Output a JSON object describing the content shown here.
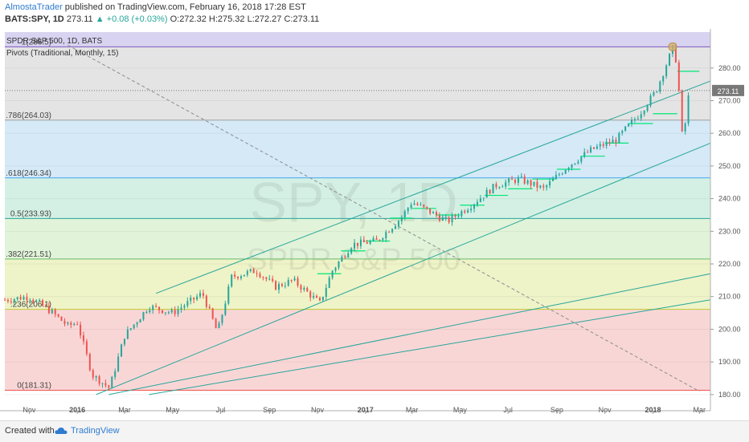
{
  "header": {
    "author": "AlmostaTrader",
    "published": "published on TradingView.com, February 16, 2018 17:28 EST"
  },
  "symbol_line": {
    "symbol": "BATS:SPY, 1D",
    "last": "273.11",
    "change": "+0.08 (+0.03%)",
    "ohlc": "O:272.32 H:275.32 L:272.27 C:273.11"
  },
  "legend": {
    "title": "SPDR S&P 500, 1D, BATS",
    "indicator": "Pivots (Traditional, Monthly, 15)"
  },
  "watermark": {
    "symbol": "SPY, 1D",
    "name": "SPDR S&P 500"
  },
  "footer": {
    "created_with": "Created with",
    "brand": "TradingView"
  },
  "colors": {
    "bull": "#26a69a",
    "bear": "#ef5350",
    "channel": "#26a69a",
    "pivot": "#00e676",
    "price_label": "#787878"
  },
  "chart_data": {
    "type": "candlestick",
    "ylim": [
      178,
      291
    ],
    "x_ticks": [
      "Nov",
      "2016",
      "Mar",
      "May",
      "Jul",
      "Sep",
      "Nov",
      "2017",
      "Mar",
      "May",
      "Jul",
      "Sep",
      "Nov",
      "2018",
      "Mar"
    ],
    "y_ticks": [
      180,
      190,
      200,
      210,
      220,
      230,
      240,
      250,
      260,
      270,
      280
    ],
    "last_price": "273.11",
    "fib_levels": [
      {
        "label": "0(181.31)",
        "value": 181.31,
        "color": "#ef5350",
        "fill": "#f9d6d6"
      },
      {
        "label": ".236(206.1)",
        "value": 206.1,
        "color": "#c0ca33",
        "fill": "#eef3c8"
      },
      {
        "label": ".382(221.51)",
        "value": 221.51,
        "color": "#66bb6a",
        "fill": "#e1f3d9"
      },
      {
        "label": "0.5(233.93)",
        "value": 233.93,
        "color": "#26a69a",
        "fill": "#d4f0e4"
      },
      {
        "label": ".618(246.34)",
        "value": 246.34,
        "color": "#42a5f5",
        "fill": "#d5e9f7"
      },
      {
        "label": ".786(264.03)",
        "value": 264.03,
        "color": "#9e9e9e",
        "fill": "#e4e4e4"
      },
      {
        "label": "1(286.5)",
        "value": 286.5,
        "color": "#7e57c2",
        "fill": "#d7d3f0"
      }
    ],
    "series": [
      {
        "name": "SPY",
        "values": [
          {
            "d": "2015-10-01",
            "c": 209
          },
          {
            "d": "2015-11-01",
            "c": 210
          },
          {
            "d": "2015-12-01",
            "c": 205
          },
          {
            "d": "2015-12-20",
            "c": 201
          },
          {
            "d": "2016-01-01",
            "c": 202
          },
          {
            "d": "2016-01-20",
            "c": 186
          },
          {
            "d": "2016-02-11",
            "c": 182
          },
          {
            "d": "2016-03-01",
            "c": 198
          },
          {
            "d": "2016-04-01",
            "c": 207
          },
          {
            "d": "2016-05-01",
            "c": 205
          },
          {
            "d": "2016-06-08",
            "c": 211
          },
          {
            "d": "2016-06-27",
            "c": 199
          },
          {
            "d": "2016-07-15",
            "c": 216
          },
          {
            "d": "2016-08-15",
            "c": 218
          },
          {
            "d": "2016-09-09",
            "c": 213
          },
          {
            "d": "2016-10-01",
            "c": 215
          },
          {
            "d": "2016-11-04",
            "c": 208
          },
          {
            "d": "2016-11-20",
            "c": 218
          },
          {
            "d": "2016-12-15",
            "c": 226
          },
          {
            "d": "2017-01-15",
            "c": 227
          },
          {
            "d": "2017-02-15",
            "c": 234
          },
          {
            "d": "2017-03-01",
            "c": 239
          },
          {
            "d": "2017-04-15",
            "c": 233
          },
          {
            "d": "2017-05-15",
            "c": 238
          },
          {
            "d": "2017-06-15",
            "c": 244
          },
          {
            "d": "2017-07-15",
            "c": 246
          },
          {
            "d": "2017-08-15",
            "c": 243
          },
          {
            "d": "2017-09-15",
            "c": 250
          },
          {
            "d": "2017-10-15",
            "c": 255
          },
          {
            "d": "2017-11-15",
            "c": 258
          },
          {
            "d": "2017-12-15",
            "c": 266
          },
          {
            "d": "2018-01-05",
            "c": 273
          },
          {
            "d": "2018-01-26",
            "c": 286
          },
          {
            "d": "2018-02-01",
            "c": 281
          },
          {
            "d": "2018-02-05",
            "c": 265
          },
          {
            "d": "2018-02-08",
            "c": 257
          },
          {
            "d": "2018-02-12",
            "c": 265
          },
          {
            "d": "2018-02-16",
            "c": 273
          }
        ]
      }
    ],
    "pivot_lines": [
      {
        "d1": "2016-11-01",
        "d2": "2016-12-01",
        "value": 217
      },
      {
        "d1": "2016-12-01",
        "d2": "2017-01-01",
        "value": 224
      },
      {
        "d1": "2017-01-01",
        "d2": "2017-02-01",
        "value": 227
      },
      {
        "d1": "2017-02-01",
        "d2": "2017-03-01",
        "value": 234
      },
      {
        "d1": "2017-03-01",
        "d2": "2017-04-01",
        "value": 237
      },
      {
        "d1": "2017-04-01",
        "d2": "2017-05-01",
        "value": 235
      },
      {
        "d1": "2017-05-01",
        "d2": "2017-06-01",
        "value": 238
      },
      {
        "d1": "2017-06-01",
        "d2": "2017-07-01",
        "value": 241
      },
      {
        "d1": "2017-07-01",
        "d2": "2017-08-01",
        "value": 243
      },
      {
        "d1": "2017-08-01",
        "d2": "2017-09-01",
        "value": 246
      },
      {
        "d1": "2017-09-01",
        "d2": "2017-10-01",
        "value": 249
      },
      {
        "d1": "2017-10-01",
        "d2": "2017-11-01",
        "value": 253
      },
      {
        "d1": "2017-11-01",
        "d2": "2017-12-01",
        "value": 257
      },
      {
        "d1": "2017-12-01",
        "d2": "2018-01-01",
        "value": 263
      },
      {
        "d1": "2018-01-01",
        "d2": "2018-02-01",
        "value": 266
      },
      {
        "d1": "2018-02-01",
        "d2": "2018-03-01",
        "value": 279
      }
    ],
    "trend_lines": [
      {
        "name": "channel-upper",
        "p1": {
          "d": "2016-04-10",
          "v": 211
        },
        "p2": {
          "d": "2018-03-15",
          "v": 276
        }
      },
      {
        "name": "channel-lower",
        "p1": {
          "d": "2016-01-25",
          "v": 180
        },
        "p2": {
          "d": "2018-03-15",
          "v": 257
        }
      },
      {
        "name": "trend-upper",
        "p1": {
          "d": "2016-02-10",
          "v": 180
        },
        "p2": {
          "d": "2018-03-15",
          "v": 217
        }
      },
      {
        "name": "trend-lower",
        "p1": {
          "d": "2016-04-01",
          "v": 180
        },
        "p2": {
          "d": "2018-03-15",
          "v": 209
        }
      },
      {
        "name": "dashed-down",
        "p1": {
          "d": "2015-12-20",
          "v": 287
        },
        "p2": {
          "d": "2018-03-01",
          "v": 181
        }
      }
    ],
    "markers": [
      {
        "d": "2018-01-26",
        "v": 286.5
      }
    ]
  }
}
